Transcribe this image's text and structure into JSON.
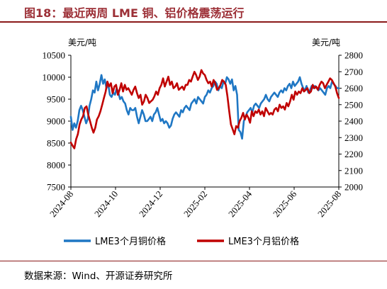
{
  "header": {
    "title": "图18：最近两周 LME 铜、铝价格震荡运行"
  },
  "footer": {
    "source": "数据来源：Wind、开源证券研究所"
  },
  "colors": {
    "copper": "#1f77c4",
    "aluminum": "#c00000",
    "accent": "#9c2f36"
  },
  "chart_data": {
    "type": "line",
    "left_axis": {
      "unit": "美元/吨",
      "min": 7500,
      "max": 10500,
      "ticks": [
        "10500",
        "10000",
        "9500",
        "9000",
        "8500",
        "8000",
        "7500"
      ]
    },
    "right_axis": {
      "unit": "美元/吨",
      "min": 2000,
      "max": 2800,
      "ticks": [
        "2800",
        "2700",
        "2600",
        "2500",
        "2400",
        "2300",
        "2200",
        "2100",
        "2000"
      ]
    },
    "x_ticks": [
      "2024-08",
      "2024-10",
      "2024-12",
      "2025-02",
      "2025-04",
      "2025-06",
      "2025-08"
    ],
    "series": [
      {
        "name": "LME3个月铜价格",
        "axis": "left",
        "values": [
          9100,
          8800,
          8950,
          8850,
          9000,
          9250,
          9350,
          9250,
          9100,
          8950,
          9050,
          9350,
          9500,
          9700,
          9650,
          9900,
          9700,
          9850,
          10050,
          9850,
          9950,
          9750,
          9850,
          9600,
          9550,
          9650,
          9600,
          9750,
          9650,
          9500,
          9550,
          9450,
          9400,
          9250,
          9150,
          9300,
          9250,
          9250,
          9300,
          9100,
          8950,
          9100,
          9250,
          9150,
          9000,
          9000,
          9050,
          9100,
          9000,
          9150,
          9200,
          9300,
          9150,
          9000,
          9050,
          8950,
          9000,
          8950,
          8850,
          8900,
          9050,
          9150,
          9200,
          9150,
          9100,
          9250,
          9200,
          9300,
          9350,
          9300,
          9250,
          9400,
          9450,
          9500,
          9400,
          9550,
          9500,
          9450,
          9400,
          9550,
          9600,
          9700,
          9650,
          9750,
          9800,
          9900,
          9850,
          9700,
          9800,
          9750,
          9900,
          9850,
          10000,
          9950,
          9850,
          9950,
          9700,
          9800,
          9600,
          8800,
          8750,
          8600,
          9000,
          9100,
          9200,
          9250,
          9300,
          9200,
          9350,
          9400,
          9350,
          9300,
          9400,
          9450,
          9500,
          9600,
          9500,
          9450,
          9550,
          9600,
          9650,
          9600,
          9550,
          9650,
          9700,
          9650,
          9750,
          9700,
          9800,
          9850,
          9750,
          9900,
          9800,
          9850,
          9900,
          10000,
          9850,
          9750,
          9700,
          9800,
          9650,
          9700,
          9800,
          9750,
          9800,
          9750,
          9700,
          9750,
          9700,
          9650,
          9600,
          9750,
          9800,
          9750,
          9900,
          9850,
          9800,
          9750,
          9750
        ]
      },
      {
        "name": "LME3个月铝价格",
        "axis": "right",
        "values": [
          2270,
          2250,
          2235,
          2290,
          2320,
          2380,
          2410,
          2430,
          2480,
          2490,
          2440,
          2400,
          2360,
          2330,
          2360,
          2410,
          2430,
          2460,
          2500,
          2540,
          2580,
          2640,
          2610,
          2630,
          2570,
          2610,
          2620,
          2560,
          2590,
          2630,
          2580,
          2620,
          2590,
          2600,
          2580,
          2560,
          2590,
          2610,
          2570,
          2540,
          2560,
          2500,
          2520,
          2560,
          2540,
          2510,
          2520,
          2530,
          2550,
          2580,
          2560,
          2600,
          2620,
          2660,
          2610,
          2640,
          2670,
          2620,
          2640,
          2600,
          2610,
          2630,
          2590,
          2600,
          2610,
          2590,
          2620,
          2620,
          2650,
          2640,
          2670,
          2700,
          2680,
          2650,
          2670,
          2710,
          2690,
          2680,
          2650,
          2630,
          2640,
          2610,
          2650,
          2630,
          2590,
          2600,
          2620,
          2650,
          2640,
          2620,
          2550,
          2460,
          2380,
          2350,
          2320,
          2370,
          2360,
          2400,
          2420,
          2450,
          2410,
          2440,
          2420,
          2390,
          2460,
          2430,
          2460,
          2450,
          2470,
          2440,
          2460,
          2430,
          2480,
          2460,
          2440,
          2450,
          2440,
          2470,
          2480,
          2460,
          2500,
          2480,
          2490,
          2470,
          2510,
          2490,
          2520,
          2560,
          2530,
          2580,
          2560,
          2580,
          2570,
          2600,
          2580,
          2590,
          2600,
          2570,
          2580,
          2620,
          2600,
          2610,
          2590,
          2620,
          2640,
          2630,
          2600,
          2620,
          2640,
          2660,
          2650,
          2630,
          2610,
          2570,
          2540
        ]
      }
    ]
  }
}
